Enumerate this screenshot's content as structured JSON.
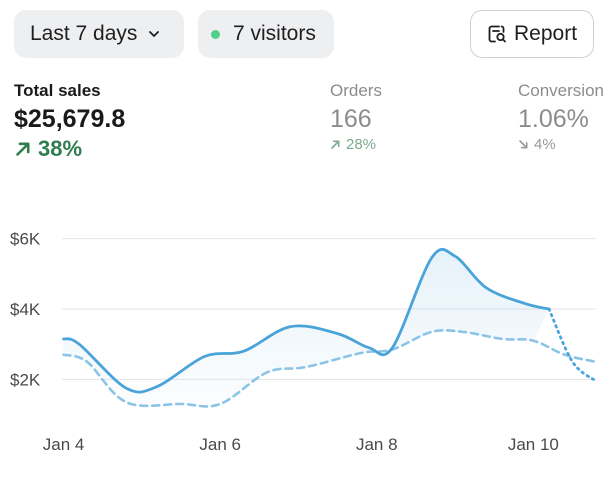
{
  "toolbar": {
    "date_range_label": "Last 7 days",
    "visitors_label": "7 visitors",
    "report_label": "Report"
  },
  "metrics": {
    "total_sales": {
      "label": "Total sales",
      "value": "$25,679.8",
      "change": "38%",
      "direction": "up"
    },
    "orders": {
      "label": "Orders",
      "value": "166",
      "change": "28%",
      "direction": "up"
    },
    "conversion": {
      "label": "Conversion",
      "value": "1.06%",
      "change": "4%",
      "direction": "down"
    }
  },
  "colors": {
    "primary_line": "#4aa3d9",
    "comparison_line": "#8cc4e8",
    "positive": "#2f7d4f",
    "live_dot": "#4cd08a"
  },
  "icons": {
    "date_range_chevron": "chevron-down-icon",
    "visitors_indicator": "green-dot-icon",
    "report": "report-search-icon",
    "trend_up": "arrow-up-right-icon",
    "trend_down": "arrow-down-right-icon"
  },
  "chart_data": {
    "type": "line",
    "ytick_labels": [
      "$2K",
      "$4K",
      "$6K"
    ],
    "y_ticks": [
      2000,
      4000,
      6000
    ],
    "ylim": [
      1300,
      6500
    ],
    "xtick_labels": [
      "Jan 4",
      "Jan 6",
      "Jan 8",
      "Jan 10"
    ],
    "x_ticks": [
      0,
      2,
      4,
      6
    ],
    "xlim": [
      -0.02,
      6.8
    ],
    "grid": true,
    "series": [
      {
        "style": "solid-with-dotted-tail",
        "solid_until_x": 6,
        "area_fill": true,
        "x": [
          0,
          0.2,
          0.8,
          1.2,
          1.8,
          2.3,
          2.9,
          3.5,
          3.9,
          4.2,
          4.7,
          5.0,
          5.4,
          5.9,
          6.2,
          6.5,
          6.8
        ],
        "y": [
          3150,
          3000,
          1750,
          1800,
          2650,
          2800,
          3500,
          3300,
          2900,
          2900,
          5450,
          5500,
          4600,
          4150,
          4000,
          2500,
          1950
        ]
      },
      {
        "style": "dashed",
        "x": [
          0,
          0.3,
          0.8,
          1.5,
          2.0,
          2.6,
          3.1,
          3.8,
          4.2,
          4.7,
          5.1,
          5.6,
          6.0,
          6.4,
          6.8
        ],
        "y": [
          2700,
          2500,
          1350,
          1300,
          1300,
          2200,
          2350,
          2750,
          2850,
          3350,
          3350,
          3150,
          3100,
          2700,
          2500
        ]
      }
    ]
  }
}
